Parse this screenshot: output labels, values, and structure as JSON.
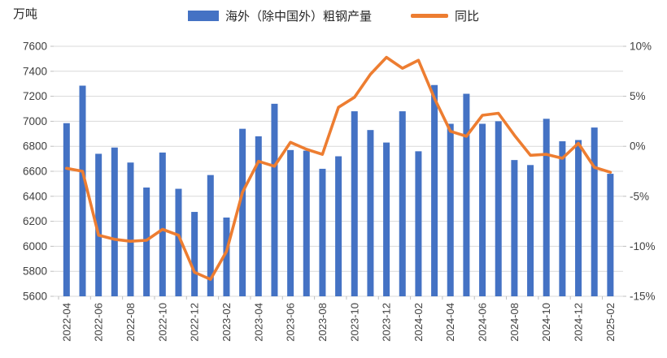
{
  "unit_label": "万吨",
  "legend": [
    {
      "label": "海外（除中国外）粗钢产量",
      "type": "bar",
      "color": "#4472C4"
    },
    {
      "label": "同比",
      "type": "line",
      "color": "#ED7D31"
    }
  ],
  "chart_data": {
    "type": "combo",
    "title": "",
    "categories": [
      "2022-04",
      "2022-05",
      "2022-06",
      "2022-07",
      "2022-08",
      "2022-09",
      "2022-10",
      "2022-11",
      "2022-12",
      "2023-01",
      "2023-02",
      "2023-03",
      "2023-04",
      "2023-05",
      "2023-06",
      "2023-07",
      "2023-08",
      "2023-09",
      "2023-10",
      "2023-11",
      "2023-12",
      "2024-01",
      "2024-02",
      "2024-03",
      "2024-04",
      "2024-05",
      "2024-06",
      "2024-07",
      "2024-08",
      "2024-09",
      "2024-10",
      "2024-11",
      "2024-12",
      "2025-01",
      "2025-02"
    ],
    "series": [
      {
        "name": "海外（除中国外）粗钢产量",
        "type": "bar",
        "axis": "left",
        "color": "#4472C4",
        "values": [
          6985,
          7285,
          6740,
          6790,
          6670,
          6470,
          6750,
          6460,
          6275,
          6570,
          6230,
          6940,
          6880,
          7140,
          6770,
          6765,
          6620,
          6720,
          7080,
          6930,
          6830,
          7080,
          6760,
          7290,
          6980,
          7220,
          6980,
          7000,
          6690,
          6650,
          7020,
          6840,
          6850,
          6950,
          6580
        ]
      },
      {
        "name": "同比",
        "type": "line",
        "axis": "right",
        "color": "#ED7D31",
        "values": [
          -2.2,
          -2.5,
          -8.9,
          -9.3,
          -9.5,
          -9.4,
          -8.3,
          -8.9,
          -12.6,
          -13.3,
          -10.5,
          -4.6,
          -1.5,
          -2.0,
          0.4,
          -0.3,
          -0.8,
          3.9,
          4.9,
          7.2,
          8.9,
          7.8,
          8.6,
          4.8,
          1.5,
          1.0,
          3.1,
          3.3,
          1.1,
          -0.9,
          -0.8,
          -1.2,
          0.3,
          -2.1,
          -2.6
        ]
      }
    ],
    "left_axis": {
      "min": 5600,
      "max": 7600,
      "step": 200,
      "ticks": [
        "5600",
        "5800",
        "6000",
        "6200",
        "6400",
        "6600",
        "6800",
        "7000",
        "7200",
        "7400",
        "7600"
      ],
      "unit": "万吨"
    },
    "right_axis": {
      "min": -15,
      "max": 10,
      "step": 5,
      "ticks": [
        "-15%",
        "-10%",
        "-5%",
        "0%",
        "5%",
        "10%"
      ]
    },
    "x_tick_every": 2,
    "grid": true,
    "legend_position": "top",
    "colors": {
      "grid": "#D9D9D9",
      "tick": "#BFBFBF",
      "axis_text": "#404040"
    }
  }
}
